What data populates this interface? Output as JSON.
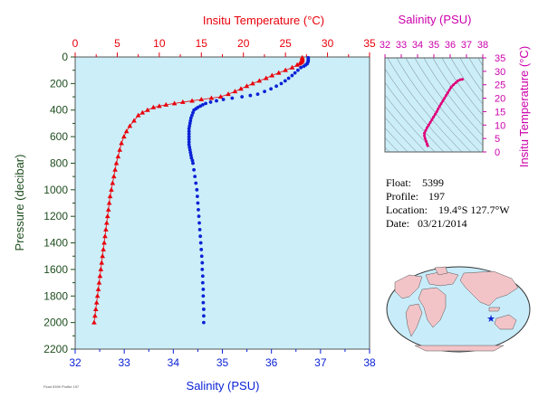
{
  "colors": {
    "temperature": "#e8000b",
    "salinity": "#0b22d6",
    "ts_curve": "#e0007a",
    "pressure_axis": "#1e4d1e",
    "plot_bg": "#cceef8",
    "axis_frame": "#555555"
  },
  "chart_data": [
    {
      "type": "scatter",
      "name": "profile",
      "y_axis": {
        "label": "Pressure (decibar)",
        "range": [
          0,
          2200
        ],
        "inverted": true,
        "ticks": [
          "0",
          "200",
          "400",
          "600",
          "800",
          "1000",
          "1200",
          "1400",
          "1600",
          "1800",
          "2000",
          "2200"
        ]
      },
      "x_axis_top": {
        "label": "Insitu Temperature (°C)",
        "range": [
          0,
          35
        ],
        "ticks": [
          "0",
          "5",
          "10",
          "15",
          "20",
          "25",
          "30",
          "35"
        ]
      },
      "x_axis_bottom": {
        "label": "Salinity (PSU)",
        "range": [
          32,
          38
        ],
        "ticks": [
          "32",
          "33",
          "34",
          "35",
          "36",
          "37",
          "38"
        ]
      },
      "grid": false,
      "series": [
        {
          "marker": "triangle",
          "axis": "top",
          "points": [
            [
              27.0,
              5
            ],
            [
              27.0,
              10
            ],
            [
              27.0,
              20
            ],
            [
              27.0,
              30
            ],
            [
              26.9,
              40
            ],
            [
              26.7,
              50
            ],
            [
              26.4,
              60
            ],
            [
              25.8,
              80
            ],
            [
              25.0,
              100
            ],
            [
              24.2,
              120
            ],
            [
              23.4,
              140
            ],
            [
              22.7,
              160
            ],
            [
              21.9,
              180
            ],
            [
              21.1,
              200
            ],
            [
              20.4,
              220
            ],
            [
              19.7,
              240
            ],
            [
              19.0,
              260
            ],
            [
              18.2,
              280
            ],
            [
              17.3,
              300
            ],
            [
              16.2,
              310
            ],
            [
              15.0,
              320
            ],
            [
              13.9,
              330
            ],
            [
              12.8,
              340
            ],
            [
              11.8,
              350
            ],
            [
              10.8,
              360
            ],
            [
              10.0,
              370
            ],
            [
              9.3,
              380
            ],
            [
              8.6,
              400
            ],
            [
              8.0,
              420
            ],
            [
              7.5,
              440
            ],
            [
              7.0,
              480
            ],
            [
              6.5,
              520
            ],
            [
              6.1,
              560
            ],
            [
              5.8,
              600
            ],
            [
              5.5,
              650
            ],
            [
              5.3,
              700
            ],
            [
              5.1,
              750
            ],
            [
              4.9,
              800
            ],
            [
              4.75,
              850
            ],
            [
              4.6,
              900
            ],
            [
              4.45,
              950
            ],
            [
              4.3,
              1000
            ],
            [
              4.15,
              1050
            ],
            [
              4.05,
              1100
            ],
            [
              3.95,
              1150
            ],
            [
              3.85,
              1200
            ],
            [
              3.75,
              1250
            ],
            [
              3.65,
              1300
            ],
            [
              3.55,
              1350
            ],
            [
              3.45,
              1400
            ],
            [
              3.35,
              1450
            ],
            [
              3.25,
              1500
            ],
            [
              3.15,
              1550
            ],
            [
              3.05,
              1600
            ],
            [
              2.95,
              1650
            ],
            [
              2.85,
              1700
            ],
            [
              2.75,
              1750
            ],
            [
              2.65,
              1800
            ],
            [
              2.55,
              1850
            ],
            [
              2.45,
              1900
            ],
            [
              2.35,
              1950
            ],
            [
              2.25,
              2000
            ]
          ]
        },
        {
          "marker": "circle",
          "axis": "bottom",
          "points": [
            [
              36.75,
              5
            ],
            [
              36.75,
              10
            ],
            [
              36.75,
              20
            ],
            [
              36.75,
              30
            ],
            [
              36.74,
              40
            ],
            [
              36.73,
              50
            ],
            [
              36.7,
              60
            ],
            [
              36.66,
              70
            ],
            [
              36.6,
              80
            ],
            [
              36.54,
              100
            ],
            [
              36.48,
              120
            ],
            [
              36.42,
              140
            ],
            [
              36.35,
              160
            ],
            [
              36.28,
              180
            ],
            [
              36.2,
              200
            ],
            [
              36.1,
              220
            ],
            [
              35.99,
              240
            ],
            [
              35.86,
              260
            ],
            [
              35.72,
              280
            ],
            [
              35.57,
              290
            ],
            [
              35.4,
              300
            ],
            [
              35.2,
              310
            ],
            [
              35.02,
              320
            ],
            [
              34.88,
              330
            ],
            [
              34.76,
              340
            ],
            [
              34.66,
              350
            ],
            [
              34.6,
              360
            ],
            [
              34.55,
              370
            ],
            [
              34.5,
              380
            ],
            [
              34.46,
              390
            ],
            [
              34.42,
              400
            ],
            [
              34.4,
              420
            ],
            [
              34.38,
              440
            ],
            [
              34.36,
              460
            ],
            [
              34.35,
              480
            ],
            [
              34.34,
              500
            ],
            [
              34.33,
              520
            ],
            [
              34.32,
              540
            ],
            [
              34.32,
              560
            ],
            [
              34.32,
              580
            ],
            [
              34.32,
              600
            ],
            [
              34.32,
              620
            ],
            [
              34.32,
              640
            ],
            [
              34.32,
              660
            ],
            [
              34.33,
              680
            ],
            [
              34.34,
              700
            ],
            [
              34.35,
              720
            ],
            [
              34.36,
              740
            ],
            [
              34.37,
              760
            ],
            [
              34.39,
              780
            ],
            [
              34.4,
              800
            ],
            [
              34.42,
              850
            ],
            [
              34.44,
              900
            ],
            [
              34.46,
              950
            ],
            [
              34.48,
              1000
            ],
            [
              34.49,
              1050
            ],
            [
              34.5,
              1100
            ],
            [
              34.51,
              1150
            ],
            [
              34.52,
              1200
            ],
            [
              34.53,
              1250
            ],
            [
              34.54,
              1300
            ],
            [
              34.55,
              1350
            ],
            [
              34.56,
              1400
            ],
            [
              34.57,
              1450
            ],
            [
              34.58,
              1500
            ],
            [
              34.59,
              1550
            ],
            [
              34.59,
              1600
            ],
            [
              34.6,
              1650
            ],
            [
              34.6,
              1700
            ],
            [
              34.61,
              1750
            ],
            [
              34.61,
              1800
            ],
            [
              34.61,
              1850
            ],
            [
              34.62,
              1900
            ],
            [
              34.62,
              1950
            ],
            [
              34.62,
              2000
            ]
          ]
        }
      ]
    },
    {
      "type": "line",
      "name": "ts_diagram",
      "x_axis_top": {
        "label": "Salinity (PSU)",
        "range": [
          32,
          38
        ],
        "ticks": [
          "32",
          "33",
          "34",
          "35",
          "36",
          "37",
          "38"
        ]
      },
      "y_axis_right": {
        "label": "Insitu Temperature (°C)",
        "range": [
          0,
          35
        ],
        "ticks": [
          "0",
          "5",
          "10",
          "15",
          "20",
          "25",
          "30",
          "35"
        ]
      },
      "background": "density contours",
      "points": [
        [
          34.62,
          2.3
        ],
        [
          34.58,
          3.0
        ],
        [
          34.52,
          4.0
        ],
        [
          34.46,
          5.0
        ],
        [
          34.42,
          6.0
        ],
        [
          34.42,
          7.0
        ],
        [
          34.5,
          8.0
        ],
        [
          34.58,
          9.0
        ],
        [
          34.68,
          10.0
        ],
        [
          34.78,
          11.0
        ],
        [
          34.88,
          12.0
        ],
        [
          34.98,
          13.0
        ],
        [
          35.08,
          14.0
        ],
        [
          35.18,
          15.0
        ],
        [
          35.26,
          16.0
        ],
        [
          35.35,
          17.0
        ],
        [
          35.45,
          18.0
        ],
        [
          35.55,
          19.0
        ],
        [
          35.65,
          20.0
        ],
        [
          35.75,
          21.0
        ],
        [
          35.85,
          22.0
        ],
        [
          35.95,
          23.0
        ],
        [
          36.05,
          24.0
        ],
        [
          36.2,
          25.0
        ],
        [
          36.35,
          25.8
        ],
        [
          36.48,
          26.5
        ],
        [
          36.62,
          26.9
        ],
        [
          36.75,
          27.0
        ]
      ]
    }
  ],
  "info": {
    "float_label": "Float:",
    "float_value": "5399",
    "profile_label": "Profile:",
    "profile_value": "197",
    "location_label": "Location:",
    "location_value": "19.4°S  127.7°W",
    "date_label": "Date:",
    "date_value": "03/21/2014"
  },
  "map": {
    "marker": "star",
    "lat": -19.4,
    "lon": -127.7
  },
  "footer_tag": "Float 5399 Profile 197"
}
